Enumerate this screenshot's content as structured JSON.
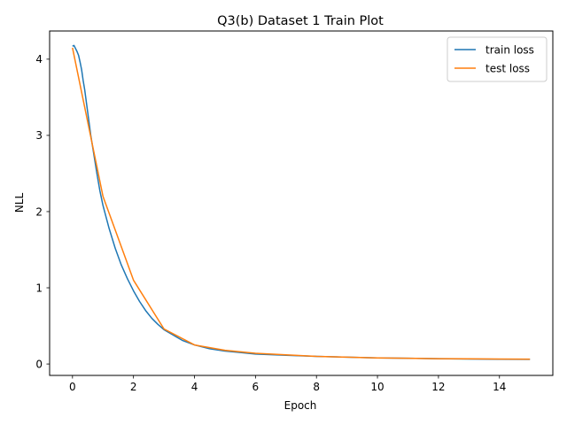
{
  "chart_data": {
    "type": "line",
    "title": "Q3(b) Dataset 1 Train Plot",
    "xlabel": "Epoch",
    "ylabel": "NLL",
    "xlim": [
      -0.75,
      15.75
    ],
    "ylim": [
      -0.15,
      4.37
    ],
    "xticks": [
      0,
      2,
      4,
      6,
      8,
      10,
      12,
      14
    ],
    "yticks": [
      0,
      1,
      2,
      3,
      4
    ],
    "grid": false,
    "legend_position": "top-right",
    "colors": {
      "train": "#1f77b4",
      "test": "#ff7f0e"
    },
    "series": [
      {
        "name": "train loss",
        "x": [
          0,
          0.05,
          0.1,
          0.15,
          0.2,
          0.25,
          0.3,
          0.35,
          0.4,
          0.45,
          0.5,
          0.6,
          0.7,
          0.8,
          0.9,
          1.0,
          1.2,
          1.4,
          1.6,
          1.8,
          2.0,
          2.2,
          2.4,
          2.6,
          2.8,
          3.0,
          3.3,
          3.6,
          4.0,
          4.5,
          5.0,
          5.5,
          6.0,
          7.0,
          8.0,
          9.0,
          10.0,
          11.0,
          12.0,
          13.0,
          14.0,
          15.0
        ],
        "y": [
          4.17,
          4.18,
          4.14,
          4.1,
          4.05,
          3.96,
          3.86,
          3.72,
          3.6,
          3.45,
          3.3,
          3.0,
          2.75,
          2.5,
          2.27,
          2.08,
          1.78,
          1.52,
          1.3,
          1.12,
          0.96,
          0.82,
          0.7,
          0.6,
          0.52,
          0.45,
          0.38,
          0.31,
          0.25,
          0.2,
          0.17,
          0.15,
          0.13,
          0.115,
          0.1,
          0.09,
          0.08,
          0.075,
          0.07,
          0.065,
          0.062,
          0.06
        ]
      },
      {
        "name": "test loss",
        "x": [
          0,
          1,
          2,
          3,
          4,
          5,
          6,
          7,
          8,
          9,
          10,
          11,
          12,
          13,
          14,
          15
        ],
        "y": [
          4.15,
          2.2,
          1.1,
          0.46,
          0.25,
          0.18,
          0.14,
          0.12,
          0.1,
          0.09,
          0.08,
          0.075,
          0.07,
          0.068,
          0.065,
          0.063
        ]
      }
    ]
  }
}
